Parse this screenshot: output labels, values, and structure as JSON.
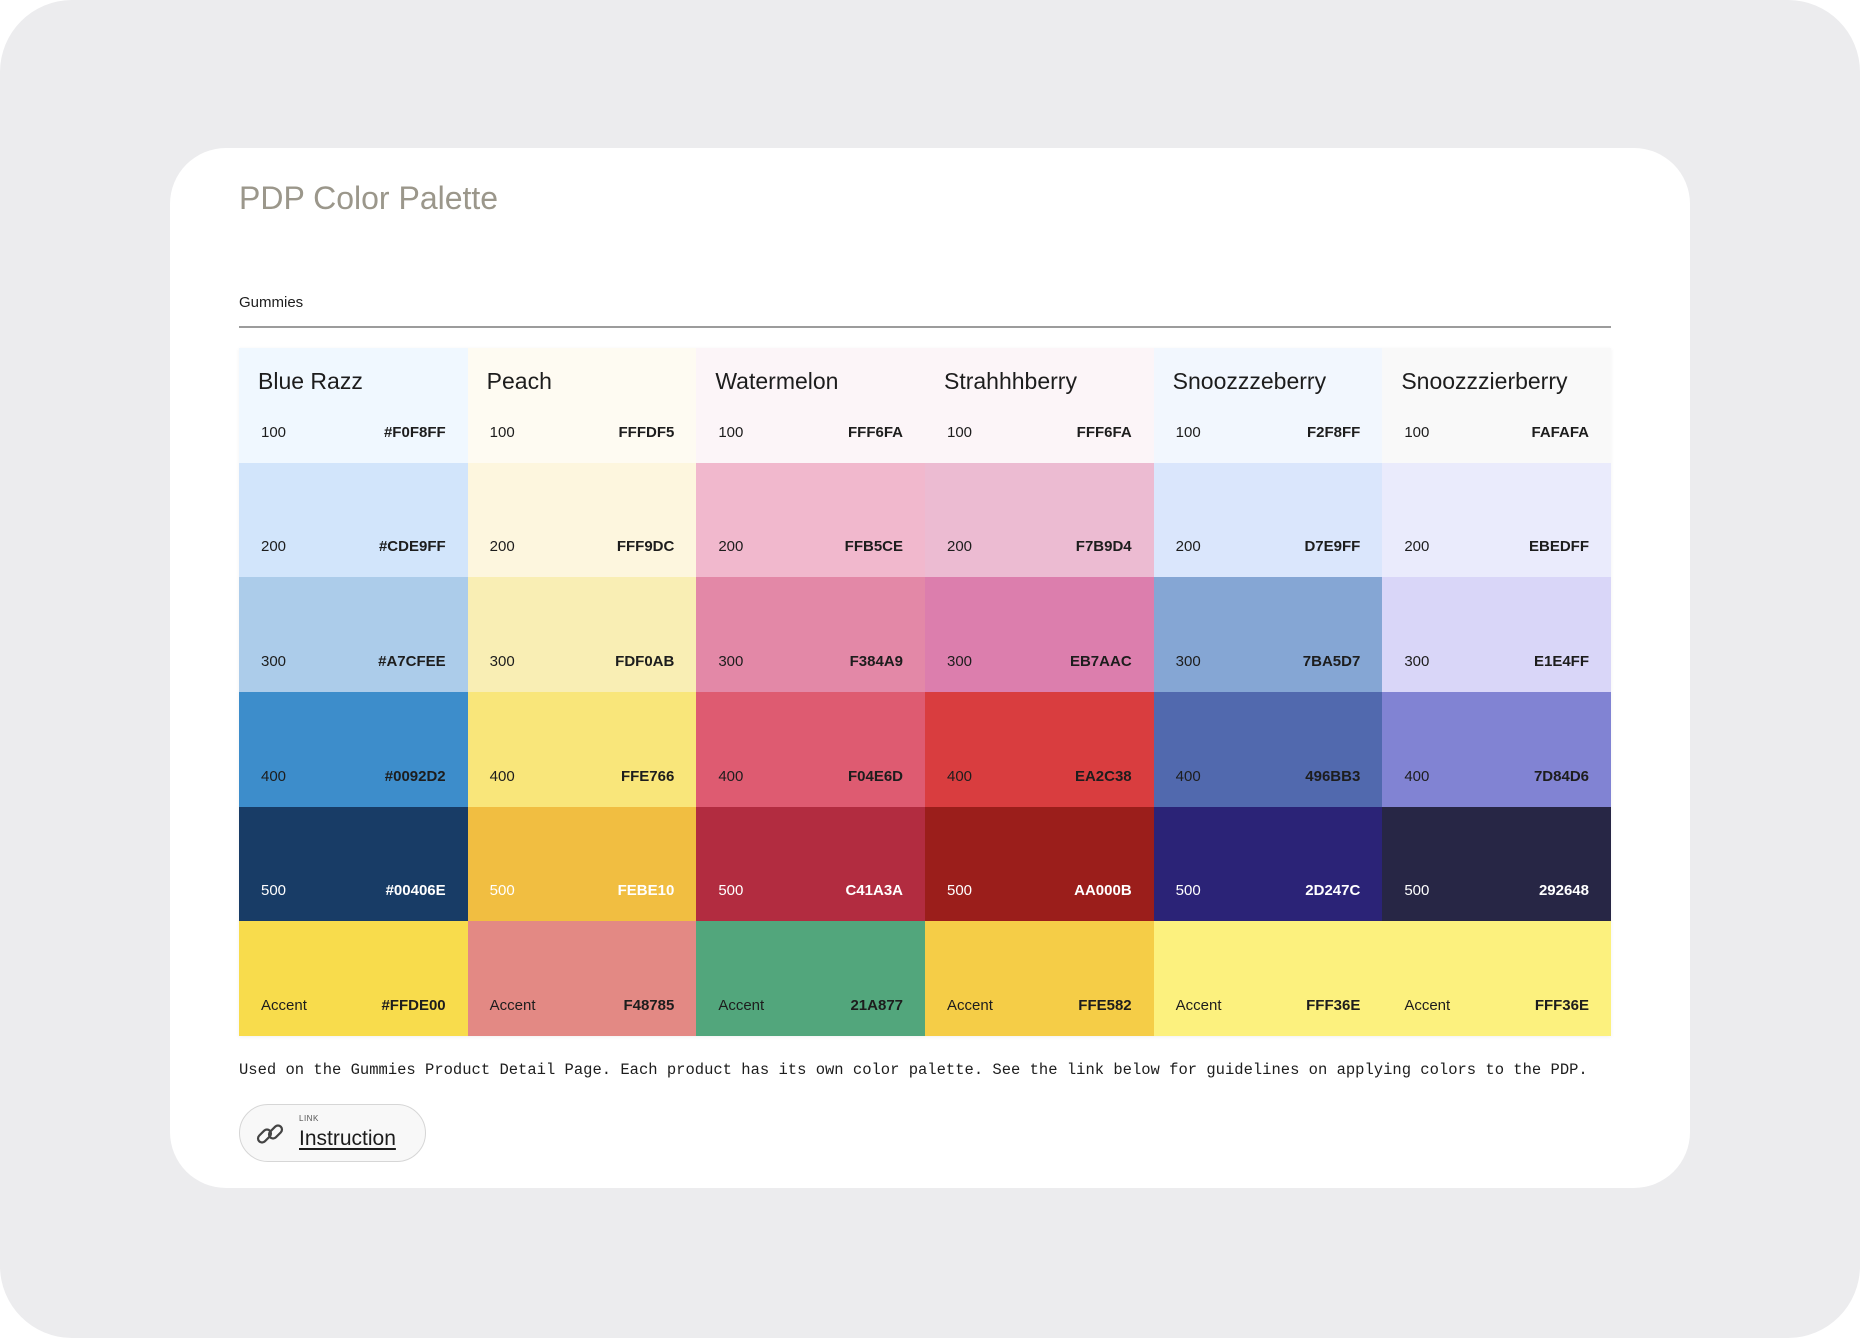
{
  "page": {
    "title": "PDP Color Palette",
    "section_label": "Gummies",
    "description": "Used on the Gummies Product Detail Page. Each product has its own color palette. See the link below for guidelines on applying colors to the PDP.",
    "link": {
      "tag": "LINK",
      "label": "Instruction",
      "icon": "link-icon"
    }
  },
  "palette": [
    {
      "name": "Blue Razz",
      "swatches": [
        {
          "level": "100",
          "hex": "#F0F8FF",
          "color": "#F0F8FF",
          "text_color": "#1d1d1d"
        },
        {
          "level": "200",
          "hex": "#CDE9FF",
          "color": "#D2E5FB",
          "text_color": "#1d1d1d"
        },
        {
          "level": "300",
          "hex": "#A7CFEE",
          "color": "#ACCCEA",
          "text_color": "#1d1d1d"
        },
        {
          "level": "400",
          "hex": "#0092D2",
          "color": "#3D8DCB",
          "text_color": "#1d1d1d"
        },
        {
          "level": "500",
          "hex": "#00406E",
          "color": "#183C66",
          "text_color": "#ffffff"
        },
        {
          "level": "Accent",
          "hex": "#FFDE00",
          "color": "#F8DC4C",
          "text_color": "#1d1d1d"
        }
      ]
    },
    {
      "name": "Peach",
      "swatches": [
        {
          "level": "100",
          "hex": "FFFDF5",
          "color": "#FEFBF2",
          "text_color": "#1d1d1d"
        },
        {
          "level": "200",
          "hex": "FFF9DC",
          "color": "#FDF6DE",
          "text_color": "#1d1d1d"
        },
        {
          "level": "300",
          "hex": "FDF0AB",
          "color": "#F9EEB4",
          "text_color": "#1d1d1d"
        },
        {
          "level": "400",
          "hex": "FFE766",
          "color": "#F9E67A",
          "text_color": "#1d1d1d"
        },
        {
          "level": "500",
          "hex": "FEBE10",
          "color": "#F1BE41",
          "text_color": "#ffffff"
        },
        {
          "level": "Accent",
          "hex": "F48785",
          "color": "#E38984",
          "text_color": "#1d1d1d"
        }
      ]
    },
    {
      "name": "Watermelon",
      "swatches": [
        {
          "level": "100",
          "hex": "FFF6FA",
          "color": "#FCF5F8",
          "text_color": "#1d1d1d"
        },
        {
          "level": "200",
          "hex": "FFB5CE",
          "color": "#F1B8CD",
          "text_color": "#1d1d1d"
        },
        {
          "level": "300",
          "hex": "F384A9",
          "color": "#E388A7",
          "text_color": "#1d1d1d"
        },
        {
          "level": "400",
          "hex": "F04E6D",
          "color": "#DE5B71",
          "text_color": "#1d1d1d"
        },
        {
          "level": "500",
          "hex": "C41A3A",
          "color": "#B22C40",
          "text_color": "#ffffff"
        },
        {
          "level": "Accent",
          "hex": "21A877",
          "color": "#52A67C",
          "text_color": "#1d1d1d"
        }
      ]
    },
    {
      "name": "Strahhhberry",
      "swatches": [
        {
          "level": "100",
          "hex": "FFF6FA",
          "color": "#FCF5F8",
          "text_color": "#1d1d1d"
        },
        {
          "level": "200",
          "hex": "F7B9D4",
          "color": "#ECBBD2",
          "text_color": "#1d1d1d"
        },
        {
          "level": "300",
          "hex": "EB7AAC",
          "color": "#DC7EAD",
          "text_color": "#1d1d1d"
        },
        {
          "level": "400",
          "hex": "EA2C38",
          "color": "#D93D3F",
          "text_color": "#1d1d1d"
        },
        {
          "level": "500",
          "hex": "AA000B",
          "color": "#9B1E1B",
          "text_color": "#ffffff"
        },
        {
          "level": "Accent",
          "hex": "FFE582",
          "color": "#F5CD47",
          "text_color": "#1d1d1d"
        }
      ]
    },
    {
      "name": "Snoozzzeberry",
      "swatches": [
        {
          "level": "100",
          "hex": "F2F8FF",
          "color": "#F2F7FE",
          "text_color": "#1d1d1d"
        },
        {
          "level": "200",
          "hex": "D7E9FF",
          "color": "#DAE6FC",
          "text_color": "#1d1d1d"
        },
        {
          "level": "300",
          "hex": "7BA5D7",
          "color": "#85A6D4",
          "text_color": "#1d1d1d"
        },
        {
          "level": "400",
          "hex": "496BB3",
          "color": "#5169AE",
          "text_color": "#1d1d1d"
        },
        {
          "level": "500",
          "hex": "2D247C",
          "color": "#2B2377",
          "text_color": "#ffffff"
        },
        {
          "level": "Accent",
          "hex": "FFF36E",
          "color": "#FCF17E",
          "text_color": "#1d1d1d"
        }
      ]
    },
    {
      "name": "Snoozzzierberry",
      "swatches": [
        {
          "level": "100",
          "hex": "FAFAFA",
          "color": "#F9F9F9",
          "text_color": "#1d1d1d"
        },
        {
          "level": "200",
          "hex": "EBEDFF",
          "color": "#EAEBFC",
          "text_color": "#1d1d1d"
        },
        {
          "level": "300",
          "hex": "E1E4FF",
          "color": "#D9D6F8",
          "text_color": "#1d1d1d"
        },
        {
          "level": "400",
          "hex": "7D84D6",
          "color": "#8183D3",
          "text_color": "#1d1d1d"
        },
        {
          "level": "500",
          "hex": "292648",
          "color": "#272645",
          "text_color": "#ffffff"
        },
        {
          "level": "Accent",
          "hex": "FFF36E",
          "color": "#FCF17E",
          "text_color": "#1d1d1d"
        }
      ]
    }
  ]
}
